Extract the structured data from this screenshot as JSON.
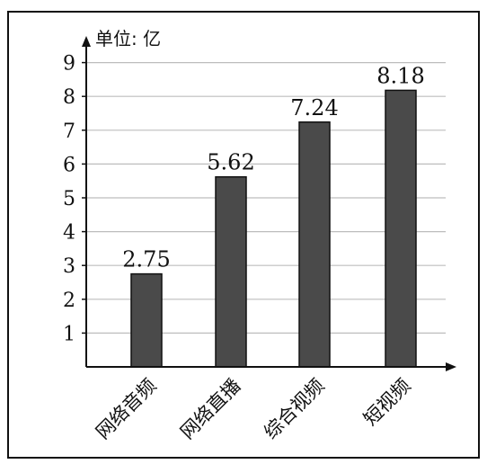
{
  "chart_data": {
    "type": "bar",
    "unit_label": "单位: 亿",
    "categories": [
      "网络音频",
      "网络直播",
      "综合视频",
      "短视频"
    ],
    "values": [
      2.75,
      5.62,
      7.24,
      8.18
    ],
    "value_labels": [
      "2.75",
      "5.62",
      "7.24",
      "8.18"
    ],
    "ylim": [
      0,
      9
    ],
    "yticks": [
      "1",
      "2",
      "3",
      "4",
      "5",
      "6",
      "7",
      "8",
      "9"
    ],
    "grid": true,
    "colors": {
      "bar": "#4a4a4a",
      "bar_edge": "#111111",
      "grid": "#bdbdbd",
      "axis": "#111111"
    }
  }
}
